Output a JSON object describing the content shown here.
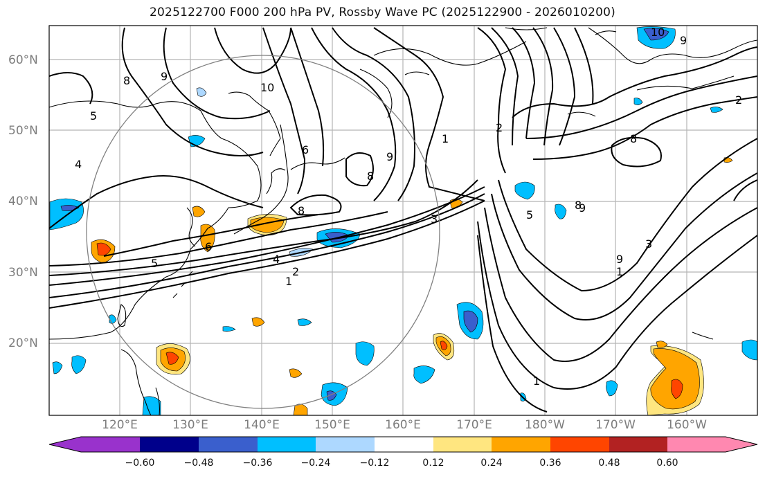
{
  "title": "2025122700 F000 200 hPa PV, Rossby Wave PC (2025122900 - 2026010200)",
  "lat_labels": [
    "60°N",
    "50°N",
    "40°N",
    "30°N",
    "20°N"
  ],
  "lon_labels": [
    "120°E",
    "130°E",
    "140°E",
    "150°E",
    "160°E",
    "170°E",
    "180°W",
    "170°W",
    "160°W"
  ],
  "colorbar": {
    "tick_labels": [
      "−0.60",
      "−0.48",
      "−0.36",
      "−0.24",
      "−0.12",
      "0.12",
      "0.24",
      "0.36",
      "0.48",
      "0.60"
    ],
    "colors": [
      "#9932cc",
      "#00008b",
      "#3a5fcd",
      "#00bfff",
      "#add8ff",
      "#ffffff",
      "#ffe680",
      "#ffa500",
      "#ff4500",
      "#b22222",
      "#ff88b0"
    ]
  },
  "contour_labels": [
    "10",
    "9",
    "8",
    "5",
    "4",
    "9",
    "6",
    "8",
    "9",
    "1",
    "2",
    "3",
    "5",
    "4",
    "2",
    "1",
    "8",
    "10",
    "9",
    "5",
    "8",
    "6",
    "3",
    "1",
    "2",
    "1",
    "8",
    "9"
  ],
  "anomaly_colors": {
    "light_blue": "#00bfff",
    "mid_blue": "#3a5fcd",
    "pale_blue": "#add8ff",
    "yellow": "#ffe680",
    "orange": "#ffa500",
    "red": "#ff4500"
  }
}
